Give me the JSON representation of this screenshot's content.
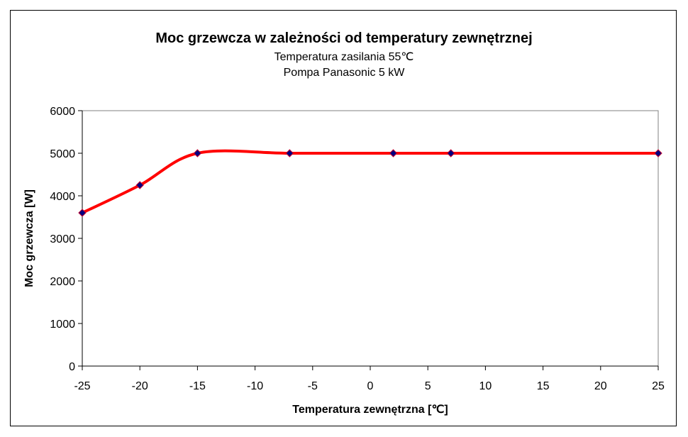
{
  "chart_data": {
    "type": "line",
    "title": "Moc grzewcza w zależności od temperatury zewnętrznej",
    "subtitle": [
      "Temperatura zasilania 55℃",
      "Pompa Panasonic 5 kW"
    ],
    "xlabel": "Temperatura zewnętrzna [℃]",
    "ylabel": "Moc grzewcza [W]",
    "xlim": [
      -25,
      25
    ],
    "ylim": [
      0,
      6000
    ],
    "xticks": [
      -25,
      -20,
      -15,
      -10,
      -5,
      0,
      5,
      10,
      15,
      20,
      25
    ],
    "yticks": [
      0,
      1000,
      2000,
      3000,
      4000,
      5000,
      6000
    ],
    "grid": false,
    "smoothed": true,
    "series": [
      {
        "x": [
          -25,
          -20,
          -15,
          -7,
          2,
          7,
          25
        ],
        "y": [
          3600,
          4250,
          5000,
          5000,
          5000,
          5000,
          5000
        ],
        "line_color": "#ff0000",
        "marker": "diamond",
        "marker_color": "#000080"
      }
    ]
  }
}
